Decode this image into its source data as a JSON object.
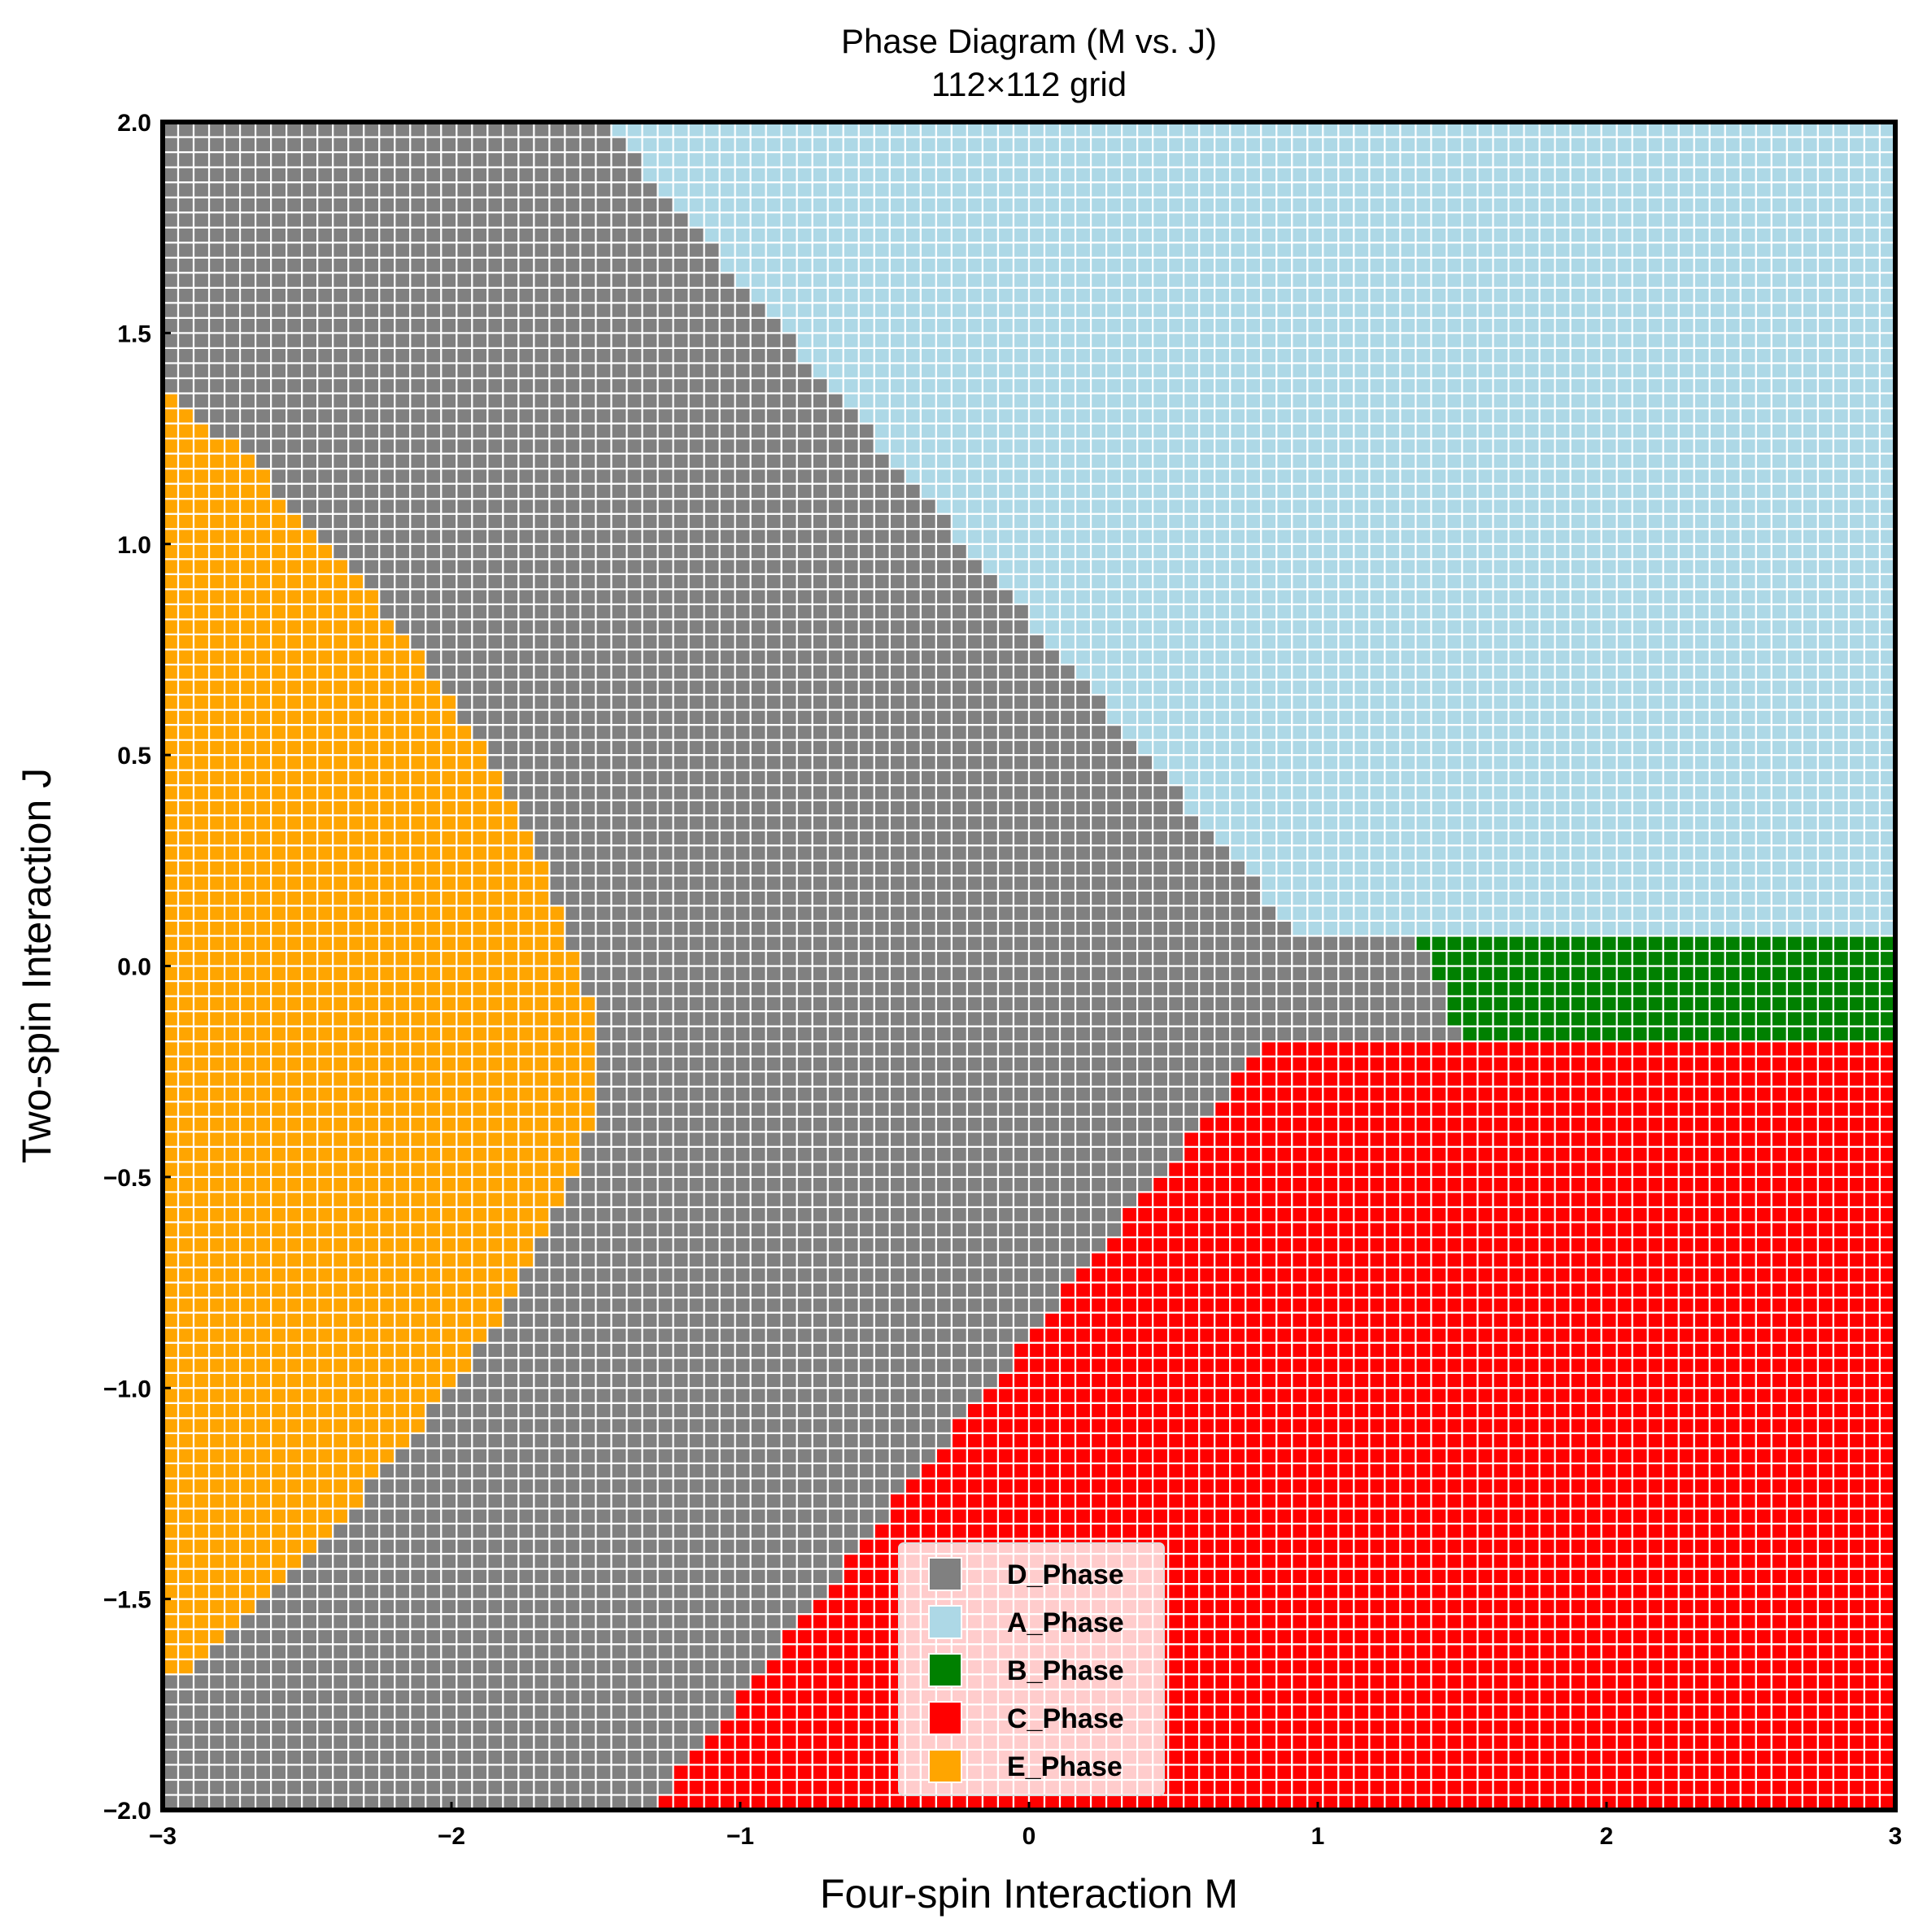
{
  "chart_data": {
    "type": "heatmap",
    "title": "Phase Diagram (M vs. J)",
    "subtitle": "112×112 grid",
    "xlabel": "Four-spin Interaction M",
    "ylabel": "Two-spin Interaction J",
    "xlim": [
      -3,
      3
    ],
    "ylim": [
      -2,
      2
    ],
    "grid_size": [
      112,
      112
    ],
    "xticks": [
      -3,
      -2,
      -1,
      0,
      1,
      2,
      3
    ],
    "yticks": [
      -2.0,
      -1.5,
      -1.0,
      -0.5,
      0.0,
      0.5,
      1.0,
      1.5,
      2.0
    ],
    "xtick_labels": [
      "−3",
      "−2",
      "−1",
      "0",
      "1",
      "2",
      "3"
    ],
    "ytick_labels": [
      "−2.0",
      "−1.5",
      "−1.0",
      "−0.5",
      "0.0",
      "0.5",
      "1.0",
      "1.5",
      "2.0"
    ],
    "legend_position": "lower-center",
    "phases": [
      {
        "name": "D_Phase",
        "color": "#808080"
      },
      {
        "name": "A_Phase",
        "color": "#add8e6"
      },
      {
        "name": "B_Phase",
        "color": "#008000"
      },
      {
        "name": "C_Phase",
        "color": "#ff0000"
      },
      {
        "name": "E_Phase",
        "color": "#ffa500"
      }
    ],
    "phase_boundaries": {
      "A_Phase": "J > 0.08 and J > -0.8*M + 0.82",
      "B_Phase": "-0.18 < J <= 0.08 and M > 1.35 + 0.6*(0.08 - J)",
      "C_Phase": "J < -0.18 and J < 0.85*M - 0.88",
      "E_Phase": "M < -1.45 - 0.3*|J + 0.3| - 0.25*J^2 - 0.2*(J + 0.3)^2"
    }
  }
}
